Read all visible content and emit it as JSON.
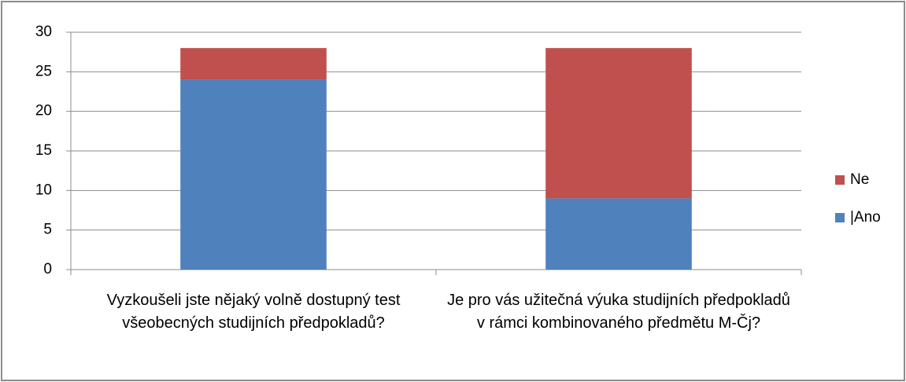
{
  "chart_data": {
    "type": "stacked_bar",
    "categories": [
      "Vyzkoušeli jste nějaký volně dostupný test všeobecných studijních předpokladů?",
      "Je pro vás užitečná výuka studijních předpokladů v rámci kombinovaného předmětu M-Čj?"
    ],
    "series": [
      {
        "name": "|Ano",
        "color": "#4f81bd",
        "values": [
          24,
          9
        ]
      },
      {
        "name": "Ne",
        "color": "#c0504d",
        "values": [
          4,
          19
        ]
      }
    ],
    "ylim": [
      0,
      30
    ],
    "yticks": [
      0,
      5,
      10,
      15,
      20,
      25,
      30
    ],
    "grid": true,
    "legend": "right"
  }
}
